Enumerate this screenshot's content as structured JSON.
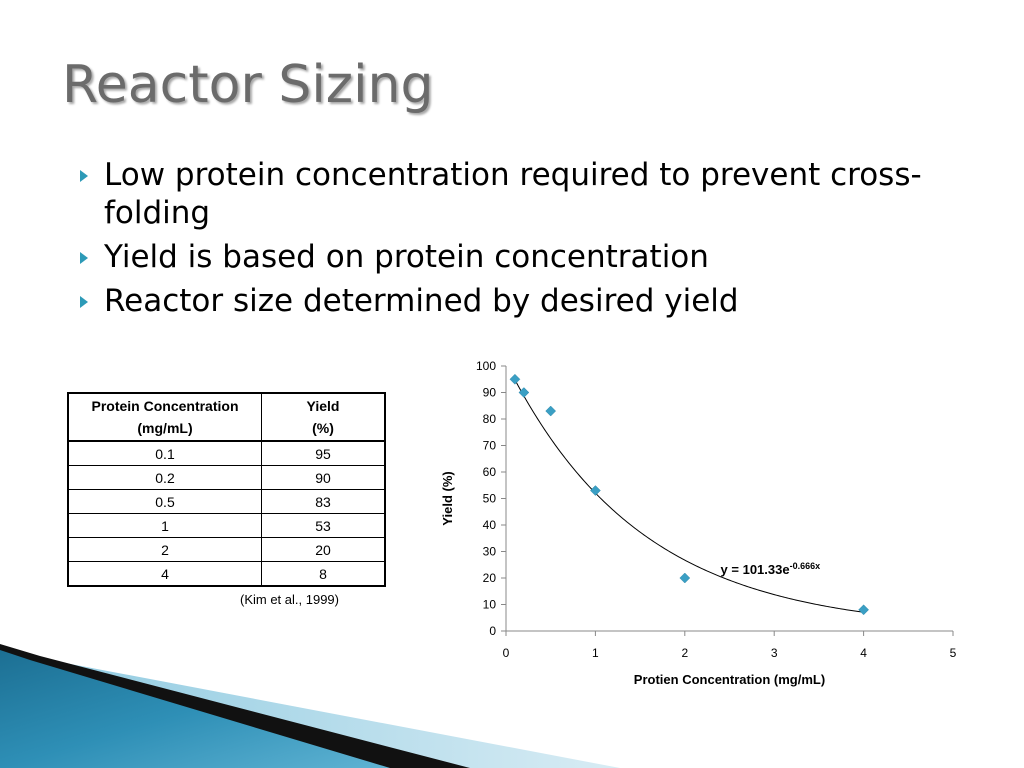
{
  "slide": {
    "title": "Reactor Sizing",
    "bullets": [
      "Low protein concentration required to prevent cross-folding",
      "Yield is based on protein concentration",
      "Reactor size determined by desired yield"
    ]
  },
  "table": {
    "headers": [
      [
        "Protein Concentration",
        "(mg/mL)"
      ],
      [
        "Yield",
        "(%)"
      ]
    ],
    "rows": [
      [
        "0.1",
        "95"
      ],
      [
        "0.2",
        "90"
      ],
      [
        "0.5",
        "83"
      ],
      [
        "1",
        "53"
      ],
      [
        "2",
        "20"
      ],
      [
        "4",
        "8"
      ]
    ]
  },
  "citation": "(Kim et al., 1999)",
  "chart_data": {
    "type": "scatter",
    "title": "",
    "xlabel": "Protien Concentration (mg/mL)",
    "ylabel": "Yield (%)",
    "xlim": [
      0,
      5
    ],
    "ylim": [
      0,
      100
    ],
    "x_ticks": [
      0,
      1,
      2,
      3,
      4,
      5
    ],
    "y_ticks": [
      0,
      10,
      20,
      30,
      40,
      50,
      60,
      70,
      80,
      90,
      100
    ],
    "grid": false,
    "series": [
      {
        "x": [
          0.1,
          0.2,
          0.5,
          1,
          2,
          4
        ],
        "y": [
          95,
          90,
          83,
          53,
          20,
          8
        ],
        "color": "#3a9fc4",
        "marker": "diamond"
      }
    ],
    "trendline": {
      "type": "exponential",
      "a": 101.33,
      "b": -0.666,
      "label_main": "y = 101.33e",
      "label_exp": "-0.666x",
      "color": "#000000"
    }
  },
  "colors": {
    "title": "#6b6b6b",
    "bullet_arrow": "#2d9ab7",
    "deco_blue_dark": "#1c6f93",
    "deco_blue_light": "#8cc9e0"
  }
}
